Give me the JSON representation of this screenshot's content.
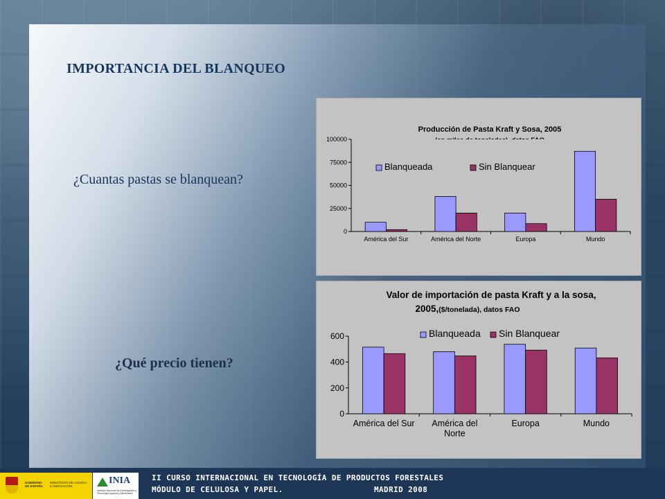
{
  "slide": {
    "title": "IMPORTANCIA DEL BLANQUEO",
    "question1": "¿Cuantas pastas se blanquean?",
    "question2": "¿Qué precio tienen?"
  },
  "footer": {
    "course": "II CURSO INTERNACIONAL EN TECNOLOGÍA DE PRODUCTOS FORESTALES",
    "module": "MÓDULO DE CELULOSA Y PAPEL.",
    "place_date": "MADRID 2008",
    "logo_gobierno": "GOBIERNO DE ESPAÑA",
    "logo_ministerio": "MINISTERIO DE CIENCIA E INNOVACIÓN",
    "logo_inia": "INIA",
    "logo_inia_sub": "Instituto Nacional de Investigación y Tecnología Agraria y Alimentaria"
  },
  "colors": {
    "bleached": "#9999ff",
    "unbleached": "#993366",
    "title": "#17345a"
  },
  "chart_data": [
    {
      "type": "bar",
      "title": "Producción de Pasta Kraft y Sosa, 2005",
      "subtitle": "(en miles de toneladas), datos FAO",
      "categories": [
        "América del Sur",
        "América del Norte",
        "Europa",
        "Mundo"
      ],
      "series": [
        {
          "name": "Blanqueada",
          "values": [
            10000,
            38000,
            20000,
            87000
          ]
        },
        {
          "name": "Sin Blanquear",
          "values": [
            2000,
            20000,
            8500,
            35000
          ]
        }
      ],
      "yticks": [
        "0",
        "25000",
        "50000",
        "75000",
        "100000"
      ],
      "ylim": [
        0,
        100000
      ],
      "legend": "top"
    },
    {
      "type": "bar",
      "title": "Valor de importación de pasta Kraft y a la sosa,",
      "title_line2": "2005,",
      "subtitle": "($/tonelada), datos FAO",
      "categories": [
        "América del Sur",
        "América del Norte",
        "Europa",
        "Mundo"
      ],
      "category_lines": [
        [
          "América del Sur"
        ],
        [
          "América del",
          "Norte"
        ],
        [
          "Europa"
        ],
        [
          "Mundo"
        ]
      ],
      "series": [
        {
          "name": "Blanqueada",
          "values": [
            515,
            480,
            537,
            508
          ]
        },
        {
          "name": "Sin Blanquear",
          "values": [
            465,
            447,
            492,
            432
          ]
        }
      ],
      "yticks": [
        "0",
        "200",
        "400",
        "600"
      ],
      "ylim": [
        0,
        600
      ],
      "legend": "top"
    }
  ]
}
